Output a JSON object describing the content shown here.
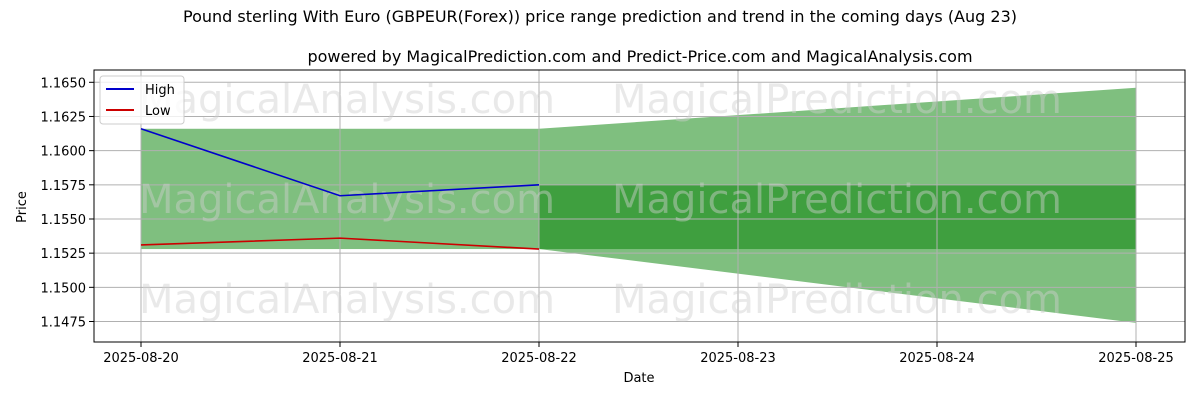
{
  "title": "Pound sterling With Euro (GBPEUR(Forex)) price range prediction and trend in the coming days (Aug 23)",
  "subtitle": "powered by MagicalPrediction.com and Predict-Price.com and MagicalAnalysis.com",
  "watermarks": [
    "MagicalAnalysis.com",
    "MagicalPrediction.com"
  ],
  "colors": {
    "high": "#0000cc",
    "low": "#cc0000",
    "band_light": "#7fbf7f",
    "band_dark": "#3f9f3f",
    "grid": "#b0b0b0"
  },
  "chart_data": {
    "type": "line",
    "xlabel": "Date",
    "ylabel": "Price",
    "x_ticks": [
      "2025-08-20",
      "2025-08-21",
      "2025-08-22",
      "2025-08-23",
      "2025-08-24",
      "2025-08-25"
    ],
    "y_ticks": [
      "1.1475",
      "1.1500",
      "1.1525",
      "1.1550",
      "1.1575",
      "1.1600",
      "1.1625",
      "1.1650"
    ],
    "ylim": [
      1.146,
      1.1659
    ],
    "grid": true,
    "legend_position": "top-left",
    "series": [
      {
        "name": "High",
        "x": [
          "2025-08-20",
          "2025-08-21",
          "2025-08-22"
        ],
        "values": [
          1.1616,
          1.1567,
          1.1575
        ]
      },
      {
        "name": "Low",
        "x": [
          "2025-08-20",
          "2025-08-21",
          "2025-08-22"
        ],
        "values": [
          1.1531,
          1.1536,
          1.1528
        ]
      }
    ],
    "historical_range_band": {
      "x": [
        "2025-08-20",
        "2025-08-22"
      ],
      "upper": 1.1616,
      "lower": 1.1528
    },
    "prediction_range_band": {
      "x": [
        "2025-08-22",
        "2025-08-25"
      ],
      "upper": [
        1.1616,
        1.1646
      ],
      "lower": [
        1.1528,
        1.1474
      ]
    },
    "prediction_core_band": {
      "x": [
        "2025-08-22",
        "2025-08-25"
      ],
      "upper": 1.1575,
      "lower": 1.1528
    }
  }
}
